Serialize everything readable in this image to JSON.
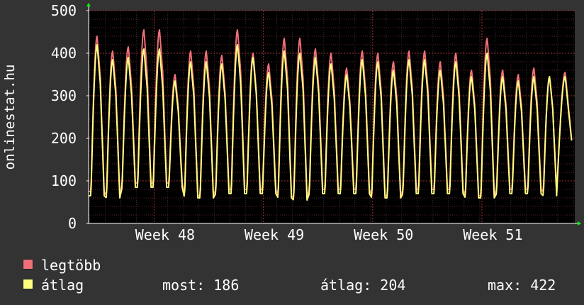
{
  "chart_data": {
    "type": "line",
    "ylabel": "onlinestat.hu",
    "ylim": [
      0,
      500
    ],
    "yticks": [
      0,
      100,
      200,
      300,
      400,
      500
    ],
    "xtick_labels": [
      "Week 48",
      "Week 49",
      "Week 50",
      "Week 51"
    ],
    "grid": true,
    "legend_position": "bottom-left",
    "x_start": 47.4,
    "x_end": 51.85,
    "x_period": 0.1428,
    "series": [
      {
        "name": "legtöbb",
        "color": "#f07078",
        "daily_peaks": [
          440,
          405,
          415,
          455,
          455,
          350,
          405,
          405,
          395,
          455,
          400,
          375,
          435,
          435,
          410,
          400,
          365,
          405,
          400,
          380,
          405,
          405,
          380,
          400,
          360,
          435,
          360,
          350,
          365,
          345,
          355
        ],
        "daily_troughs": [
          75,
          65,
          95,
          95,
          95,
          95,
          65,
          65,
          80,
          80,
          80,
          80,
          65,
          60,
          80,
          80,
          80,
          80,
          65,
          65,
          80,
          80,
          80,
          80,
          65,
          65,
          80,
          80,
          80,
          75,
          180
        ]
      },
      {
        "name": "átlag",
        "color": "#ffff80",
        "daily_peaks": [
          420,
          385,
          390,
          410,
          410,
          335,
          380,
          380,
          375,
          420,
          390,
          355,
          405,
          400,
          390,
          375,
          350,
          385,
          380,
          360,
          385,
          385,
          360,
          380,
          345,
          400,
          345,
          335,
          345,
          345,
          345
        ],
        "daily_troughs": [
          65,
          60,
          85,
          85,
          85,
          85,
          60,
          60,
          70,
          70,
          70,
          70,
          60,
          55,
          70,
          70,
          70,
          70,
          60,
          60,
          70,
          70,
          70,
          70,
          60,
          60,
          70,
          70,
          70,
          65,
          180
        ]
      }
    ]
  },
  "legend": [
    {
      "label": "legtöbb",
      "color": "#f07078"
    },
    {
      "label": "átlag",
      "color": "#ffff80"
    }
  ],
  "stats": {
    "most": "most: 186",
    "atlag": "átlag: 204",
    "max": "max: 422"
  }
}
